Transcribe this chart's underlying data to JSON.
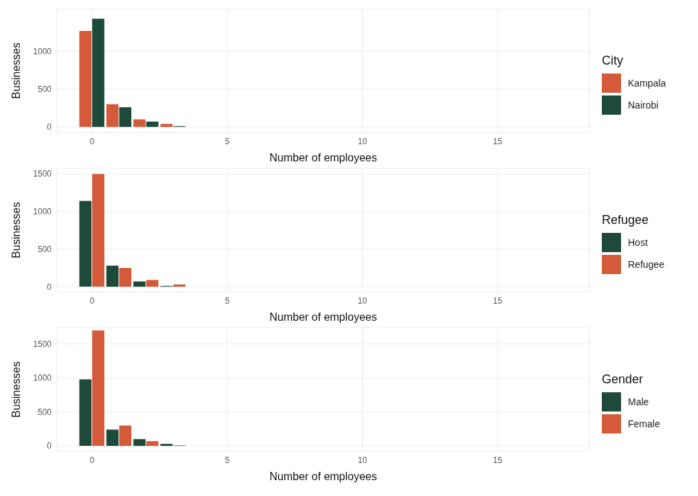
{
  "chart_data": [
    {
      "type": "bar",
      "x": [
        0,
        1,
        2,
        3
      ],
      "xlabel": "Number of employees",
      "ylabel": "Businesses",
      "legend_title": "City",
      "xlim": [
        -1.3,
        18.4
      ],
      "xticks": [
        0,
        5,
        10,
        15
      ],
      "ylim": [
        -75,
        1560
      ],
      "yticks": [
        0,
        500,
        1000
      ],
      "grid": true,
      "legend": "right",
      "series": [
        {
          "name": "Kampala",
          "color": "#d45a3a",
          "values": [
            1270,
            300,
            100,
            40
          ]
        },
        {
          "name": "Nairobi",
          "color": "#1e4a3c",
          "values": [
            1430,
            260,
            70,
            10
          ]
        }
      ]
    },
    {
      "type": "bar",
      "x": [
        0,
        1,
        2,
        3
      ],
      "xlabel": "Number of employees",
      "ylabel": "Businesses",
      "legend_title": "Refugee",
      "xlim": [
        -1.3,
        18.4
      ],
      "xticks": [
        0,
        5,
        10,
        15
      ],
      "ylim": [
        -70,
        1575
      ],
      "yticks": [
        0,
        500,
        1000,
        1500
      ],
      "grid": true,
      "legend": "right",
      "series": [
        {
          "name": "Host",
          "color": "#1e4a3c",
          "values": [
            1140,
            280,
            70,
            10
          ]
        },
        {
          "name": "Refugee",
          "color": "#d45a3a",
          "values": [
            1500,
            250,
            90,
            30
          ]
        }
      ]
    },
    {
      "type": "bar",
      "x": [
        0,
        1,
        2,
        3
      ],
      "xlabel": "Number of employees",
      "ylabel": "Businesses",
      "legend_title": "Gender",
      "xlim": [
        -1.3,
        18.4
      ],
      "xticks": [
        0,
        5,
        10,
        15
      ],
      "ylim": [
        -80,
        1740
      ],
      "yticks": [
        0,
        500,
        1000,
        1500
      ],
      "grid": true,
      "legend": "right",
      "series": [
        {
          "name": "Male",
          "color": "#1e4a3c",
          "values": [
            980,
            240,
            100,
            30
          ]
        },
        {
          "name": "Female",
          "color": "#d45a3a",
          "values": [
            1700,
            300,
            70,
            10
          ]
        }
      ]
    }
  ]
}
